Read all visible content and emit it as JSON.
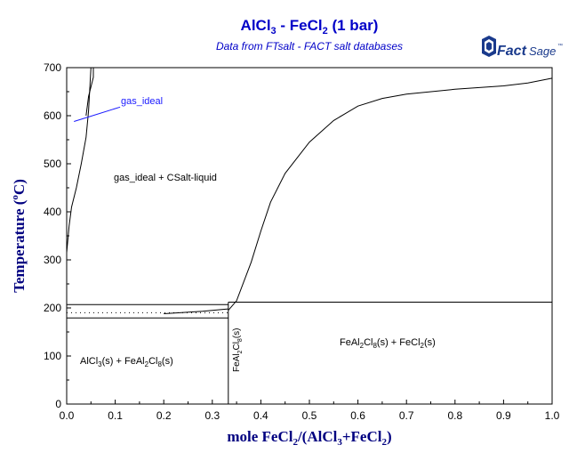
{
  "chart_data": {
    "type": "line",
    "title": {
      "base": "AlCl",
      "sub1": "3",
      "mid": " - FeCl",
      "sub2": "2",
      "tail": " (1 bar)"
    },
    "subtitle": "Data from FTsalt - FACT salt databases",
    "xlabel": {
      "p1": "mole FeCl",
      "s1": "2",
      "p2": "/(AlCl",
      "s2": "3",
      "p3": "+FeCl",
      "s3": "2",
      "p4": ")"
    },
    "ylabel": {
      "p1": "Temperature (",
      "sup": "o",
      "p2": "C)"
    },
    "xlim": [
      0,
      1
    ],
    "ylim": [
      0,
      700
    ],
    "x_ticks": [
      "0.0",
      "0.1",
      "0.2",
      "0.3",
      "0.4",
      "0.5",
      "0.6",
      "0.7",
      "0.8",
      "0.9",
      "1.0"
    ],
    "y_ticks": [
      "0",
      "100",
      "200",
      "300",
      "400",
      "500",
      "600",
      "700"
    ],
    "series": [
      {
        "x": [
          0.0,
          0.005,
          0.01,
          0.02,
          0.03,
          0.04,
          0.045,
          0.05
        ],
        "y": [
          315,
          370,
          410,
          450,
          500,
          555,
          610,
          700
        ]
      },
      {
        "x": [
          0.04,
          0.045,
          0.05,
          0.055,
          0.055
        ],
        "y": [
          600,
          640,
          660,
          680,
          700
        ]
      },
      {
        "x": [
          0.333,
          0.35,
          0.38,
          0.4,
          0.42,
          0.45,
          0.5,
          0.55,
          0.6,
          0.65,
          0.7,
          0.8,
          0.9,
          0.95,
          1.0
        ],
        "y": [
          195,
          215,
          295,
          360,
          420,
          480,
          545,
          590,
          620,
          636,
          645,
          655,
          662,
          668,
          678
        ]
      },
      {
        "x": [
          0.0,
          0.333
        ],
        "y": [
          207,
          207
        ]
      },
      {
        "x": [
          0.0,
          0.333
        ],
        "y": [
          179,
          179
        ]
      },
      {
        "x": [
          0.333,
          1.0
        ],
        "y": [
          212,
          212
        ]
      },
      {
        "x": [
          0.2,
          0.28,
          0.333
        ],
        "y": [
          188,
          193,
          198
        ]
      },
      {
        "x": [
          0.0,
          0.333
        ],
        "y": [
          190,
          190
        ],
        "style": "dotted"
      },
      {
        "x": [
          0.333,
          0.333
        ],
        "y": [
          0,
          212
        ]
      },
      {
        "x": [
          0.015,
          0.11
        ],
        "y": [
          588,
          618
        ]
      }
    ],
    "annotations": {
      "gas_ideal": "gas_ideal",
      "gas_csalt": "gas_ideal + CSalt-liquid",
      "left": {
        "a": "AlCl",
        "as": "3",
        "b": "(s) + FeAl",
        "bs1": "2",
        "c": "Cl",
        "cs": "8",
        "d": "(s)"
      },
      "right": {
        "a": "FeAl",
        "as": "2",
        "b": "Cl",
        "bs": "8",
        "c": "(s) + FeCl",
        "cs": "2",
        "d": "(s)"
      },
      "vertical": {
        "a": "FeAl",
        "as": "2",
        "b": "Cl",
        "bs": "8",
        "c": "(s)"
      }
    },
    "colors": {
      "title": "#0000c8",
      "axis_title": "#000080",
      "curve": "#000000",
      "gas_line": "#1a1aff",
      "logo": "#1a3a8c"
    },
    "grid": false
  },
  "logo": {
    "main": "FactSage",
    "tm": "™"
  }
}
